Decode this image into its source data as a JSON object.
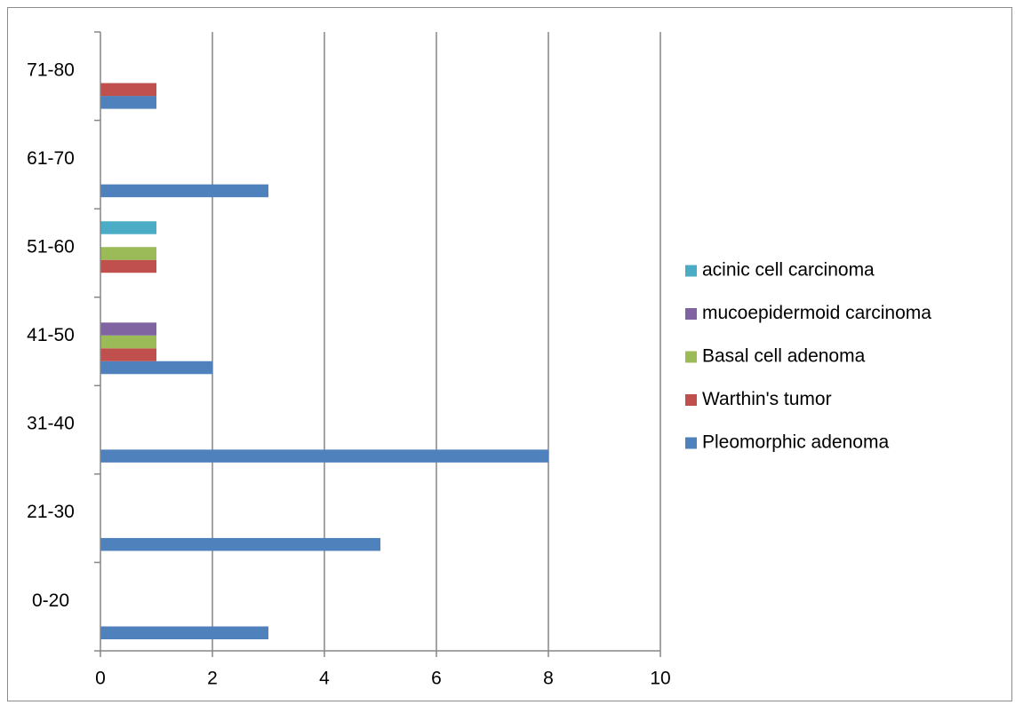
{
  "chart_data": {
    "type": "bar",
    "orientation": "horizontal",
    "title": "",
    "xlabel": "",
    "ylabel": "",
    "categories": [
      "0-20",
      "21-30",
      "31-40",
      "41-50",
      "51-60",
      "61-70",
      "71-80"
    ],
    "xlim": [
      0,
      10
    ],
    "xticks": [
      0,
      2,
      4,
      6,
      8,
      10
    ],
    "grid": "vertical",
    "legend_position": "right",
    "series": [
      {
        "name": "Pleomorphic adenoma",
        "color": "#4F81BD",
        "values": [
          3,
          5,
          8,
          2,
          0,
          3,
          1
        ]
      },
      {
        "name": "Warthin's tumor",
        "color": "#C0504D",
        "values": [
          0,
          0,
          0,
          1,
          1,
          0,
          1
        ]
      },
      {
        "name": "Basal cell adenoma",
        "color": "#9BBB59",
        "values": [
          0,
          0,
          0,
          1,
          1,
          0,
          0
        ]
      },
      {
        "name": "mucoepidermoid carcinoma",
        "color": "#8064A2",
        "values": [
          0,
          0,
          0,
          1,
          0,
          0,
          0
        ]
      },
      {
        "name": "acinic cell carcinoma",
        "color": "#4BACC6",
        "values": [
          0,
          0,
          0,
          0,
          1,
          0,
          0
        ]
      }
    ]
  }
}
